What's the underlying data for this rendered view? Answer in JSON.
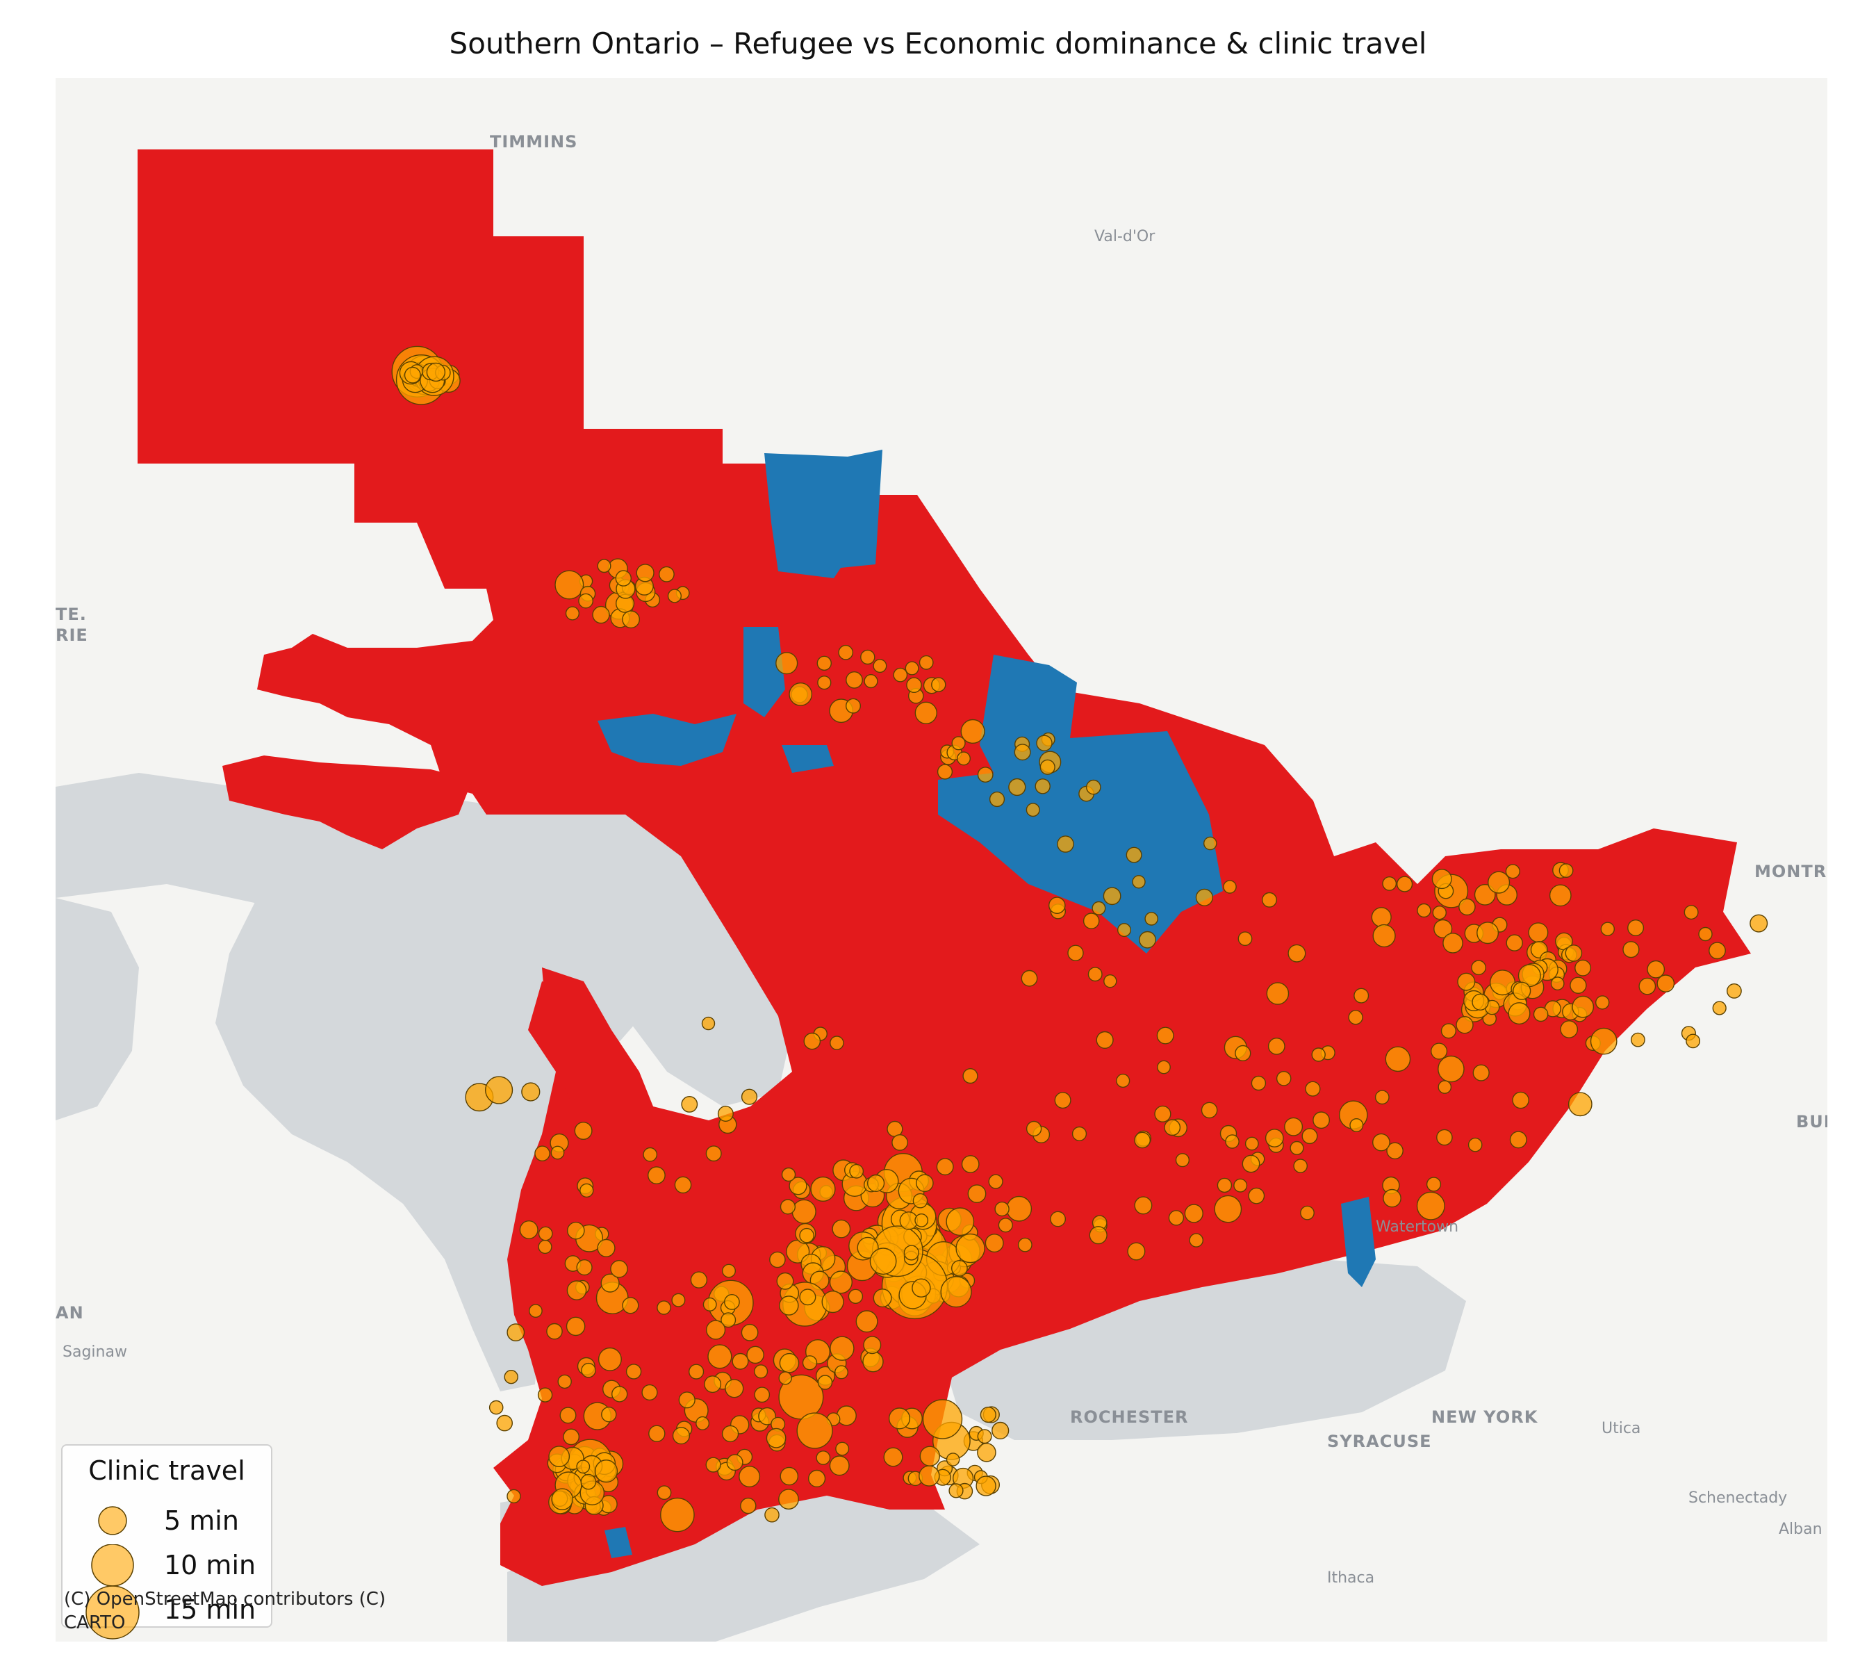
{
  "title": "Southern Ontario – Refugee vs Economic dominance & clinic travel",
  "colors": {
    "refugee_dominant": "#e31a1c",
    "economic_dominant": "#1f78b4",
    "clinic_marker": "#ffa500",
    "clinic_edge": "#5a4000",
    "water": "#d4d8db",
    "land": "#f4f4f2"
  },
  "basemap_labels": {
    "timmins": "TIMMINS",
    "valdor": "Val-d'Or",
    "montreal": "MONTR",
    "bur": "BUI",
    "watertown": "Watertown",
    "rochester": "ROCHESTER",
    "newyork": "NEW YORK",
    "utica": "Utica",
    "syracuse": "SYRACUSE",
    "schenectady": "Schenectady",
    "alban": "Alban",
    "ithaca": "Ithaca",
    "saginaw": "Saginaw",
    "an": "AN",
    "ste": "TE.",
    "rie": "RIE"
  },
  "legend": {
    "title": "Clinic travel",
    "items": [
      {
        "label": "5 min",
        "minutes": 5
      },
      {
        "label": "10 min",
        "minutes": 10
      },
      {
        "label": "15 min",
        "minutes": 15
      }
    ]
  },
  "attribution": {
    "line1": "(C) OpenStreetMap contributors (C)",
    "line2": "CARTO"
  }
}
